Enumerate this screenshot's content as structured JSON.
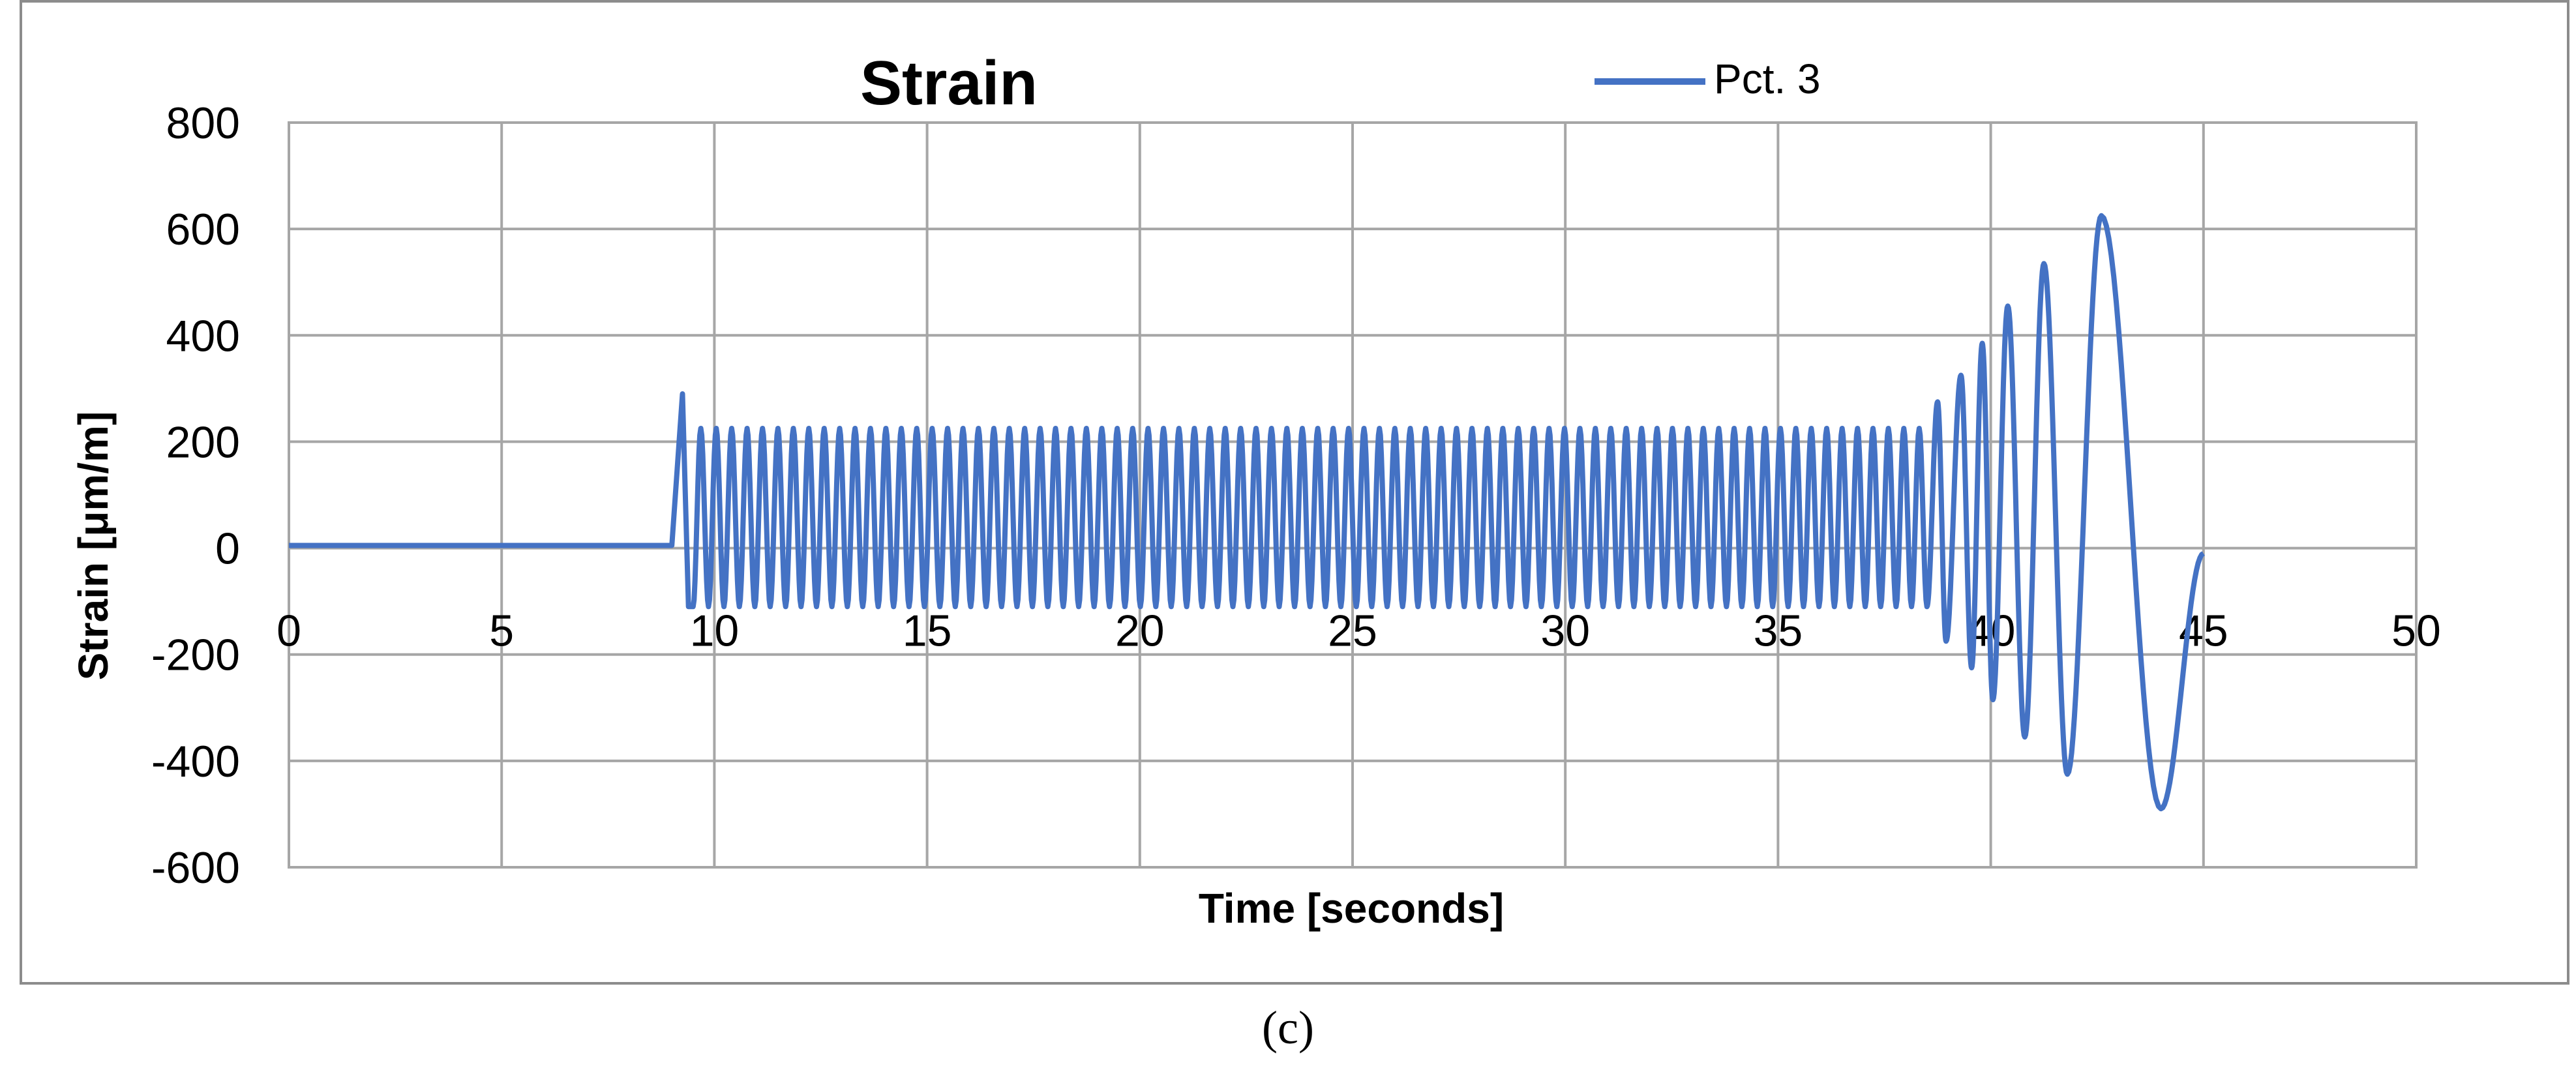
{
  "chart_data": {
    "type": "line",
    "title": "Strain",
    "xlabel": "Time [seconds]",
    "ylabel": "Strain [μm/m]",
    "xlim": [
      0,
      50
    ],
    "ylim": [
      -600,
      800
    ],
    "xticks": [
      "0",
      "5",
      "10",
      "15",
      "20",
      "25",
      "30",
      "35",
      "40",
      "45",
      "50"
    ],
    "yticks": [
      "800",
      "600",
      "400",
      "200",
      "0",
      "-200",
      "-400",
      "-600"
    ],
    "grid": true,
    "legend_position": "top",
    "series": [
      {
        "name": "Pct. 3",
        "color": "#4472C4",
        "description_points": {
          "flat": {
            "x": [
              0,
              9.0
            ],
            "y": [
              5,
              5
            ]
          },
          "initial_peak": {
            "x": 9.25,
            "y": 290
          },
          "steady_oscillation": {
            "x_start": 9.5,
            "x_end": 38.5,
            "cycles": 80,
            "max": 225,
            "min": -110
          },
          "growing_oscillation": {
            "peaks": [
              {
                "x": 38.75,
                "y": 275
              },
              {
                "x": 39.3,
                "y": 325
              },
              {
                "x": 39.8,
                "y": 385
              },
              {
                "x": 40.4,
                "y": 455
              },
              {
                "x": 41.25,
                "y": 535
              },
              {
                "x": 42.6,
                "y": 625
              }
            ],
            "troughs": [
              {
                "x": 38.95,
                "y": -175
              },
              {
                "x": 39.55,
                "y": -225
              },
              {
                "x": 40.05,
                "y": -285
              },
              {
                "x": 40.8,
                "y": -355
              },
              {
                "x": 41.8,
                "y": -425
              },
              {
                "x": 44.0,
                "y": -490
              }
            ],
            "end": {
              "x": 45.0,
              "y": -10
            }
          }
        }
      }
    ]
  },
  "caption": "(c)"
}
